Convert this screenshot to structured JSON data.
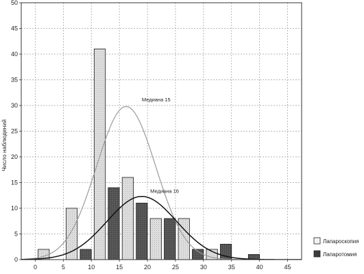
{
  "chart_data": {
    "type": "bar",
    "ylabel": "Число наблюдений",
    "xlabel": "",
    "xlim": [
      -2.5,
      47.5
    ],
    "ylim": [
      0,
      50
    ],
    "x_ticks": [
      0,
      5,
      10,
      15,
      20,
      25,
      30,
      35,
      40,
      45
    ],
    "y_ticks": [
      0,
      5,
      10,
      15,
      20,
      25,
      30,
      35,
      40,
      45,
      50
    ],
    "grid": true,
    "legend_position": "bottom-right",
    "series": [
      {
        "name": "Лапароскопия",
        "color": "#e2e2e2",
        "pattern": "light-dotted",
        "bins": [
          {
            "x": 1.5,
            "value": 2
          },
          {
            "x": 6.5,
            "value": 10
          },
          {
            "x": 11.5,
            "value": 41
          },
          {
            "x": 16.5,
            "value": 16
          },
          {
            "x": 21.5,
            "value": 8
          },
          {
            "x": 26.5,
            "value": 8
          },
          {
            "x": 31.5,
            "value": 2
          }
        ],
        "curve": {
          "mean": 16.2,
          "sd": 5.3,
          "peak": 29.8,
          "color": "#9a9a9a"
        }
      },
      {
        "name": "Лапаротомия",
        "color": "#505050",
        "pattern": "dark",
        "bins": [
          {
            "x": 9.0,
            "value": 2
          },
          {
            "x": 14.0,
            "value": 14
          },
          {
            "x": 19.0,
            "value": 11
          },
          {
            "x": 24.0,
            "value": 8
          },
          {
            "x": 29.0,
            "value": 2
          },
          {
            "x": 34.0,
            "value": 3
          },
          {
            "x": 39.0,
            "value": 1
          }
        ],
        "curve": {
          "mean": 19.0,
          "sd": 6.2,
          "peak": 12.3,
          "color": "#111111"
        }
      }
    ],
    "bar_width": 2.0,
    "annotations": [
      {
        "text": "Медиана 15",
        "x": 19.0,
        "y": 30.8
      },
      {
        "text": "Медиана 16",
        "x": 20.5,
        "y": 13.0
      }
    ]
  }
}
